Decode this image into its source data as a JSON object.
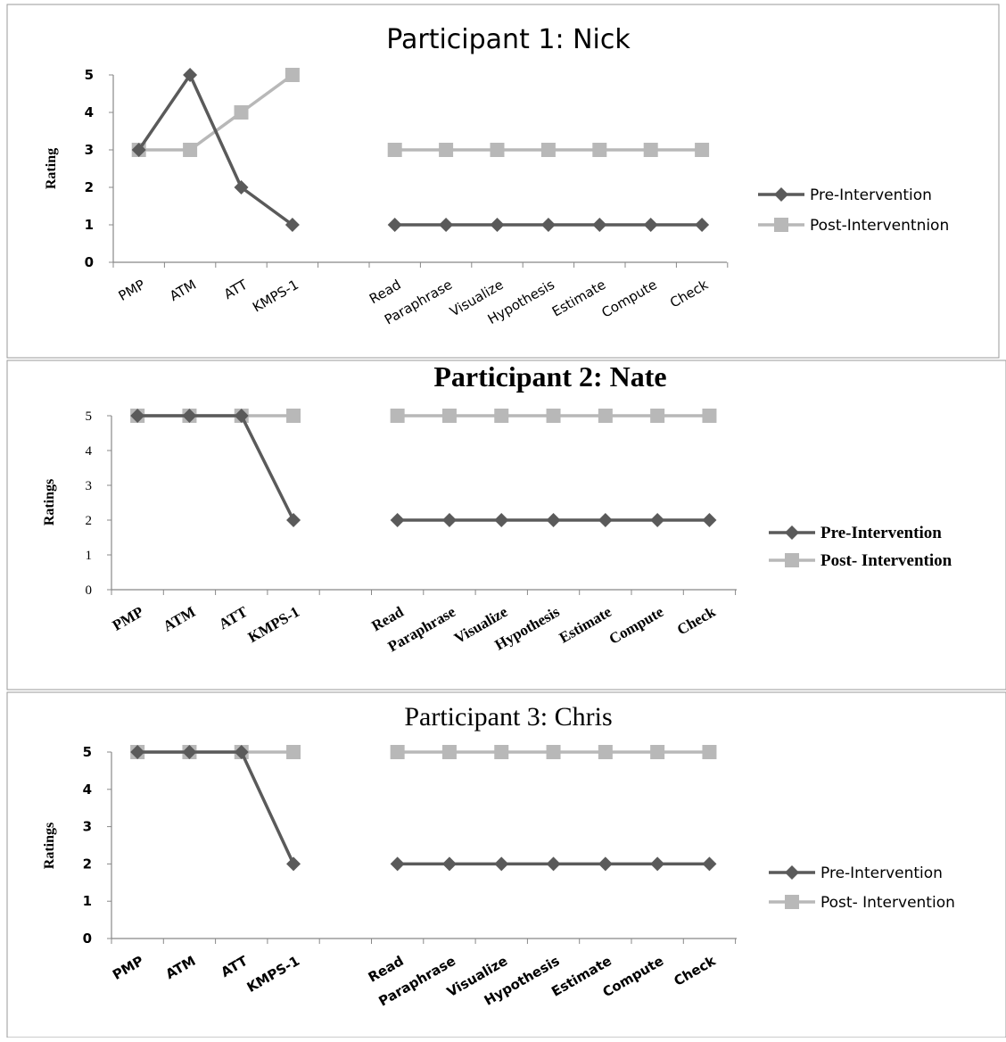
{
  "chart_data": [
    {
      "type": "line",
      "title": "Participant 1:  Nick",
      "ylabel": "Rating",
      "xlabel": "",
      "ylim": [
        0,
        5
      ],
      "yticks": [
        0,
        1,
        2,
        3,
        4,
        5
      ],
      "grid": false,
      "legend_position": "right",
      "categories": [
        "PMP",
        "ATM",
        "ATT",
        "KMPS-1",
        "",
        "Read",
        "Paraphrase",
        "Visualize",
        "Hypothesis",
        "Estimate",
        "Compute",
        "Check"
      ],
      "series": [
        {
          "name": "Pre-Intervention",
          "marker": "diamond",
          "color": "#5a5a5a",
          "values": [
            3,
            5,
            2,
            1,
            null,
            1,
            1,
            1,
            1,
            1,
            1,
            1
          ]
        },
        {
          "name": "Post-Interventnion",
          "marker": "square",
          "color": "#b8b8b8",
          "values": [
            3,
            3,
            4,
            5,
            null,
            3,
            3,
            3,
            3,
            3,
            3,
            3
          ]
        }
      ]
    },
    {
      "type": "line",
      "title": "Participant 2: Nate",
      "ylabel": "Ratings",
      "xlabel": "",
      "ylim": [
        0,
        5
      ],
      "yticks": [
        0,
        1,
        2,
        3,
        4,
        5
      ],
      "grid": false,
      "legend_position": "right",
      "categories": [
        "PMP",
        "ATM",
        "ATT",
        "KMPS-1",
        "",
        "Read",
        "Paraphrase",
        "Visualize",
        "Hypothesis",
        "Estimate",
        "Compute",
        "Check"
      ],
      "series": [
        {
          "name": "Pre-Intervention",
          "marker": "diamond",
          "color": "#5a5a5a",
          "values": [
            5,
            5,
            5,
            2,
            null,
            2,
            2,
            2,
            2,
            2,
            2,
            2
          ]
        },
        {
          "name": "Post- Intervention",
          "marker": "square",
          "color": "#b8b8b8",
          "values": [
            5,
            5,
            5,
            5,
            null,
            5,
            5,
            5,
            5,
            5,
            5,
            5
          ]
        }
      ]
    },
    {
      "type": "line",
      "title": "Participant 3: Chris",
      "ylabel": "Ratings",
      "xlabel": "",
      "ylim": [
        0,
        5
      ],
      "yticks": [
        0,
        1,
        2,
        3,
        4,
        5
      ],
      "grid": false,
      "legend_position": "right",
      "categories": [
        "PMP",
        "ATM",
        "ATT",
        "KMPS-1",
        "",
        "Read",
        "Paraphrase",
        "Visualize",
        "Hypothesis",
        "Estimate",
        "Compute",
        "Check"
      ],
      "series": [
        {
          "name": "Pre-Intervention",
          "marker": "diamond",
          "color": "#5a5a5a",
          "values": [
            5,
            5,
            5,
            2,
            null,
            2,
            2,
            2,
            2,
            2,
            2,
            2
          ]
        },
        {
          "name": "Post- Intervention",
          "marker": "square",
          "color": "#b8b8b8",
          "values": [
            5,
            5,
            5,
            5,
            null,
            5,
            5,
            5,
            5,
            5,
            5,
            5
          ]
        }
      ]
    }
  ]
}
